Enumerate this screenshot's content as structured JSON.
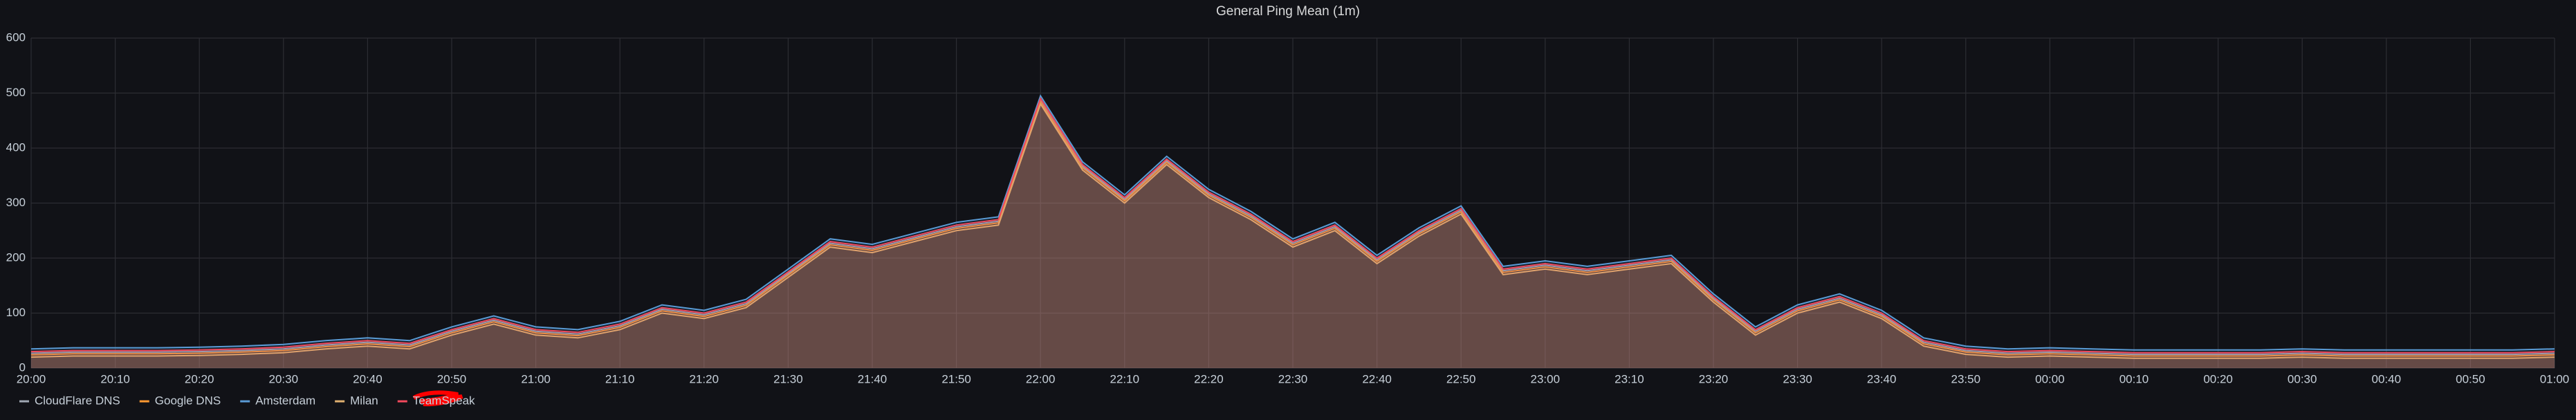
{
  "chart_data": {
    "type": "line",
    "title": "General Ping Mean (1m)",
    "categories": [
      "20:00",
      null,
      "20:10",
      null,
      "20:20",
      null,
      "20:30",
      null,
      "20:40",
      null,
      "20:50",
      null,
      "21:00",
      null,
      "21:10",
      null,
      "21:20",
      null,
      "21:30",
      null,
      "21:40",
      null,
      "21:50",
      null,
      "22:00",
      null,
      "22:10",
      null,
      "22:20",
      null,
      "22:30",
      null,
      "22:40",
      null,
      "22:50",
      null,
      "23:00",
      null,
      "23:10",
      null,
      "23:20",
      null,
      "23:30",
      null,
      "23:40",
      null,
      "23:50",
      null,
      "00:00",
      null,
      "00:10",
      null,
      "00:20",
      null,
      "00:30",
      null,
      "00:40",
      null,
      "00:50",
      null,
      "01:00"
    ],
    "ylim": [
      0,
      600
    ],
    "yticks": [
      0,
      100,
      200,
      300,
      400,
      500,
      600
    ],
    "grid": true,
    "legend": "bottom-left",
    "fill": true,
    "series": [
      {
        "name": "CloudFlare DNS",
        "color": "#9fa7b3",
        "values": [
          27,
          29,
          29,
          29,
          30,
          32,
          35,
          42,
          47,
          42,
          67,
          87,
          67,
          62,
          77,
          107,
          97,
          117,
          172,
          227,
          217,
          237,
          257,
          267,
          487,
          367,
          307,
          377,
          317,
          277,
          227,
          257,
          197,
          247,
          287,
          177,
          187,
          177,
          187,
          197,
          127,
          67,
          107,
          127,
          97,
          47,
          32,
          27,
          29,
          27,
          25,
          25,
          25,
          25,
          27,
          25,
          25,
          25,
          25,
          25,
          27
        ]
      },
      {
        "name": "Google DNS",
        "color": "#ff9830",
        "values": [
          24,
          26,
          26,
          26,
          27,
          29,
          32,
          39,
          44,
          39,
          64,
          84,
          64,
          59,
          74,
          104,
          94,
          114,
          169,
          224,
          214,
          234,
          254,
          264,
          484,
          364,
          304,
          374,
          314,
          274,
          224,
          254,
          194,
          244,
          284,
          174,
          184,
          174,
          184,
          194,
          124,
          64,
          104,
          124,
          94,
          44,
          29,
          24,
          26,
          24,
          22,
          22,
          22,
          22,
          24,
          22,
          22,
          22,
          22,
          22,
          24
        ]
      },
      {
        "name": "Amsterdam",
        "color": "#5a9bd5",
        "values": [
          35,
          37,
          37,
          37,
          38,
          40,
          43,
          50,
          55,
          50,
          75,
          95,
          75,
          70,
          85,
          115,
          105,
          125,
          180,
          235,
          225,
          245,
          265,
          275,
          495,
          375,
          315,
          385,
          325,
          285,
          235,
          265,
          205,
          255,
          295,
          185,
          195,
          185,
          195,
          205,
          135,
          75,
          115,
          135,
          105,
          55,
          40,
          35,
          37,
          35,
          33,
          33,
          33,
          33,
          35,
          33,
          33,
          33,
          33,
          33,
          35
        ]
      },
      {
        "name": "Milan",
        "color": "#e0b070",
        "values": [
          20,
          22,
          22,
          22,
          23,
          25,
          28,
          35,
          40,
          35,
          60,
          80,
          60,
          55,
          70,
          100,
          90,
          110,
          165,
          220,
          210,
          230,
          250,
          260,
          480,
          360,
          300,
          370,
          310,
          270,
          220,
          250,
          190,
          240,
          280,
          170,
          180,
          170,
          180,
          190,
          120,
          60,
          100,
          120,
          90,
          40,
          25,
          20,
          22,
          20,
          18,
          18,
          18,
          18,
          20,
          18,
          18,
          18,
          18,
          18,
          20
        ]
      },
      {
        "name": "TeamSpeak",
        "color": "#f2495c",
        "values": [
          30,
          32,
          32,
          32,
          33,
          35,
          38,
          45,
          50,
          45,
          70,
          90,
          70,
          65,
          80,
          110,
          100,
          120,
          175,
          230,
          220,
          240,
          260,
          270,
          490,
          370,
          310,
          380,
          320,
          280,
          230,
          260,
          200,
          250,
          290,
          180,
          190,
          180,
          190,
          200,
          130,
          70,
          110,
          130,
          100,
          50,
          35,
          30,
          32,
          30,
          28,
          28,
          28,
          28,
          30,
          28,
          28,
          28,
          28,
          28,
          30
        ]
      }
    ]
  }
}
